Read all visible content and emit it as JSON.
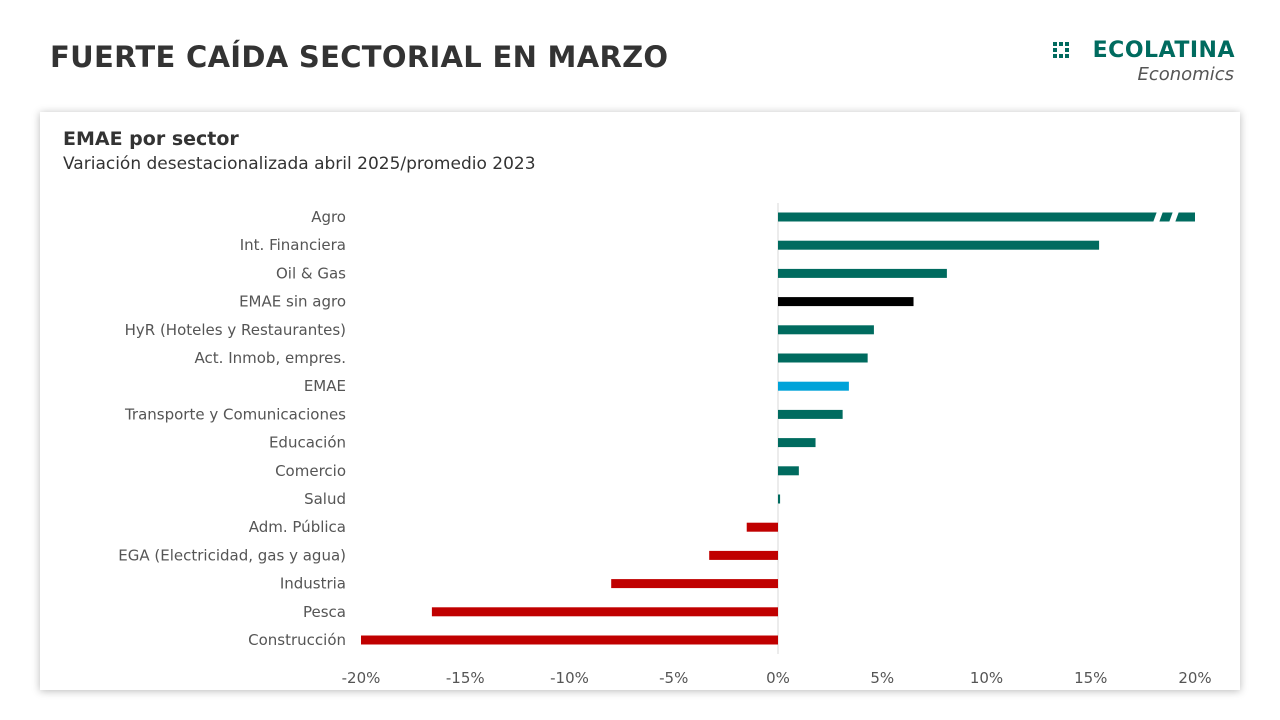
{
  "header": {
    "title": "FUERTE CAÍDA SECTORIAL EN MARZO",
    "logo_name": "ECOLATINA",
    "logo_sub": "Economics"
  },
  "colors": {
    "positive": "#006b5f",
    "negative": "#c00000",
    "emae": "#00a3d9",
    "emae_sin_agro": "#000000",
    "axis": "#d9d9d9",
    "label": "#555555"
  },
  "chart_data": {
    "type": "bar",
    "orientation": "horizontal",
    "title": "EMAE por sector",
    "subtitle": "Variación desestacionalizada abril 2025/promedio 2023",
    "xlim": [
      -20,
      20
    ],
    "xticks": [
      {
        "value": -20,
        "label": "-20%"
      },
      {
        "value": -15,
        "label": "-15%"
      },
      {
        "value": -10,
        "label": "-10%"
      },
      {
        "value": -5,
        "label": "-5%"
      },
      {
        "value": 0,
        "label": "0%"
      },
      {
        "value": 5,
        "label": "5%"
      },
      {
        "value": 10,
        "label": "10%"
      },
      {
        "value": 15,
        "label": "15%"
      },
      {
        "value": 20,
        "label": "20%"
      }
    ],
    "grid": false,
    "legend": "none",
    "categories": [
      "Agro",
      "Int. Financiera",
      "Oil & Gas",
      "EMAE sin agro",
      "HyR (Hoteles y Restaurantes)",
      "Act. Inmob, empres.",
      "EMAE",
      "Transporte y Comunicaciones",
      "Educación",
      "Comercio",
      "Salud",
      "Adm. Pública",
      "EGA (Electricidad, gas y agua)",
      "Industria",
      "Pesca",
      "Construcción"
    ],
    "values": [
      20,
      15.4,
      8.1,
      6.5,
      4.6,
      4.3,
      3.4,
      3.1,
      1.8,
      1.0,
      0.1,
      -1.5,
      -3.3,
      -8.0,
      -16.6,
      -20.0
    ],
    "color_keys": [
      "positive",
      "positive",
      "positive",
      "emae_sin_agro",
      "positive",
      "positive",
      "emae",
      "positive",
      "positive",
      "positive",
      "positive",
      "negative",
      "negative",
      "negative",
      "negative",
      "negative"
    ],
    "truncated": [
      true,
      false,
      false,
      false,
      false,
      false,
      false,
      false,
      false,
      false,
      false,
      false,
      false,
      false,
      false,
      false
    ]
  }
}
